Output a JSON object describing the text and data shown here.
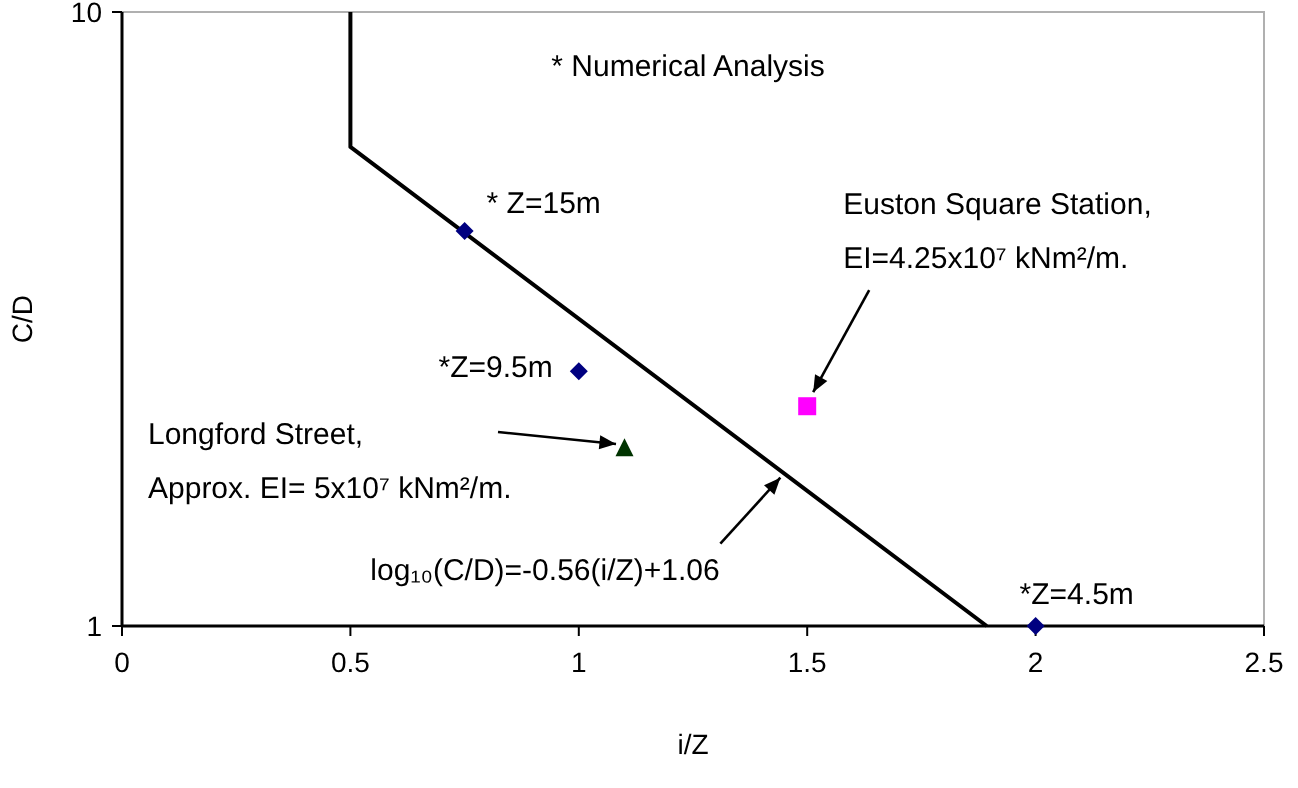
{
  "chart_data": {
    "type": "scatter",
    "xlabel": "i/Z",
    "ylabel": "C/D",
    "xlim": [
      0,
      2.5
    ],
    "xticks": [
      0,
      0.5,
      1,
      1.5,
      2,
      2.5
    ],
    "ylim": [
      1,
      10
    ],
    "yticks": [
      1,
      10
    ],
    "log": "y",
    "grid": false,
    "series": [
      {
        "type": "line",
        "color": "#000000",
        "x": [
          0.5,
          0.5,
          1.893
        ],
        "values": [
          10,
          6.03,
          1
        ],
        "marker": "none",
        "line_style": "solid"
      },
      {
        "color": "#000080",
        "x": [
          0.75,
          1,
          2
        ],
        "values": [
          4.4,
          2.6,
          1
        ],
        "marker": "diamond"
      },
      {
        "color": "#003300",
        "x": [
          1.1
        ],
        "values": [
          1.94
        ],
        "marker": "triangle"
      },
      {
        "color": "#ff00ff",
        "x": [
          1.5
        ],
        "values": [
          2.28
        ],
        "marker": "square"
      }
    ],
    "annotations": [
      "* Numerical Analysis",
      {
        "text": "* Z=15m",
        "x": 0.75,
        "y": 4.4
      },
      {
        "text": "*Z=9.5m",
        "x": 1,
        "y": 2.6
      },
      {
        "text": "*Z=4.5m",
        "x": 2,
        "y": 1
      },
      {
        "text": "Euston Square Station,\nEI=4.25x10⁷ kNm²/m.",
        "x": 1.5,
        "y": 2.28
      },
      "Longford Street,\nApprox. EI= 5x10⁷ kNm²/m.",
      {
        "text": "log₁₀(C/D)=-0.56(i/Z)+1.06",
        "x": 1.45,
        "y": 1.77
      }
    ]
  }
}
